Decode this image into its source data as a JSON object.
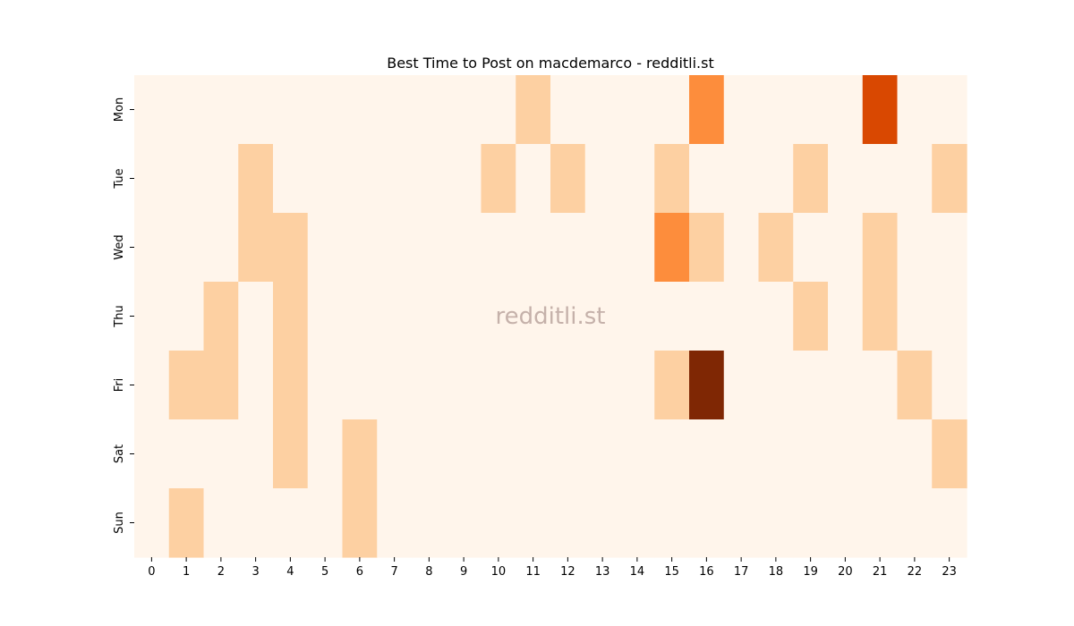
{
  "chart_data": {
    "type": "heatmap",
    "title": "Best Time to Post on macdemarco - redditli.st",
    "watermark": "redditli.st",
    "xlabel": "",
    "ylabel": "",
    "x_categories": [
      "0",
      "1",
      "2",
      "3",
      "4",
      "5",
      "6",
      "7",
      "8",
      "9",
      "10",
      "11",
      "12",
      "13",
      "14",
      "15",
      "16",
      "17",
      "18",
      "19",
      "20",
      "21",
      "22",
      "23"
    ],
    "y_categories": [
      "Mon",
      "Tue",
      "Wed",
      "Thu",
      "Fri",
      "Sat",
      "Sun"
    ],
    "colormap": "Oranges",
    "values": [
      [
        0,
        0,
        0,
        0,
        0,
        0,
        0,
        0,
        0,
        0,
        0,
        1,
        0,
        0,
        0,
        0,
        3,
        0,
        0,
        0,
        0,
        5,
        0,
        0
      ],
      [
        0,
        0,
        0,
        1,
        0,
        0,
        0,
        0,
        0,
        0,
        1,
        0,
        1,
        0,
        0,
        1,
        0,
        0,
        0,
        1,
        0,
        0,
        0,
        1
      ],
      [
        0,
        0,
        0,
        1,
        1,
        0,
        0,
        0,
        0,
        0,
        0,
        0,
        0,
        0,
        0,
        3,
        1,
        0,
        1,
        0,
        0,
        1,
        0,
        0
      ],
      [
        0,
        0,
        1,
        0,
        1,
        0,
        0,
        0,
        0,
        0,
        0,
        0,
        0,
        0,
        0,
        0,
        0,
        0,
        0,
        1,
        0,
        1,
        0,
        0
      ],
      [
        0,
        1,
        1,
        0,
        1,
        0,
        0,
        0,
        0,
        0,
        0,
        0,
        0,
        0,
        0,
        1,
        6,
        0,
        0,
        0,
        0,
        0,
        1,
        0
      ],
      [
        0,
        0,
        0,
        0,
        1,
        0,
        1,
        0,
        0,
        0,
        0,
        0,
        0,
        0,
        0,
        0,
        0,
        0,
        0,
        0,
        0,
        0,
        0,
        1
      ],
      [
        0,
        1,
        0,
        0,
        0,
        0,
        1,
        0,
        0,
        0,
        0,
        0,
        0,
        0,
        0,
        0,
        0,
        0,
        0,
        0,
        0,
        0,
        0,
        0
      ]
    ],
    "color_scale": {
      "0": "#fff5eb",
      "1": "#fdd0a2",
      "3": "#fd8d3c",
      "5": "#d94801",
      "6": "#7f2704"
    }
  }
}
